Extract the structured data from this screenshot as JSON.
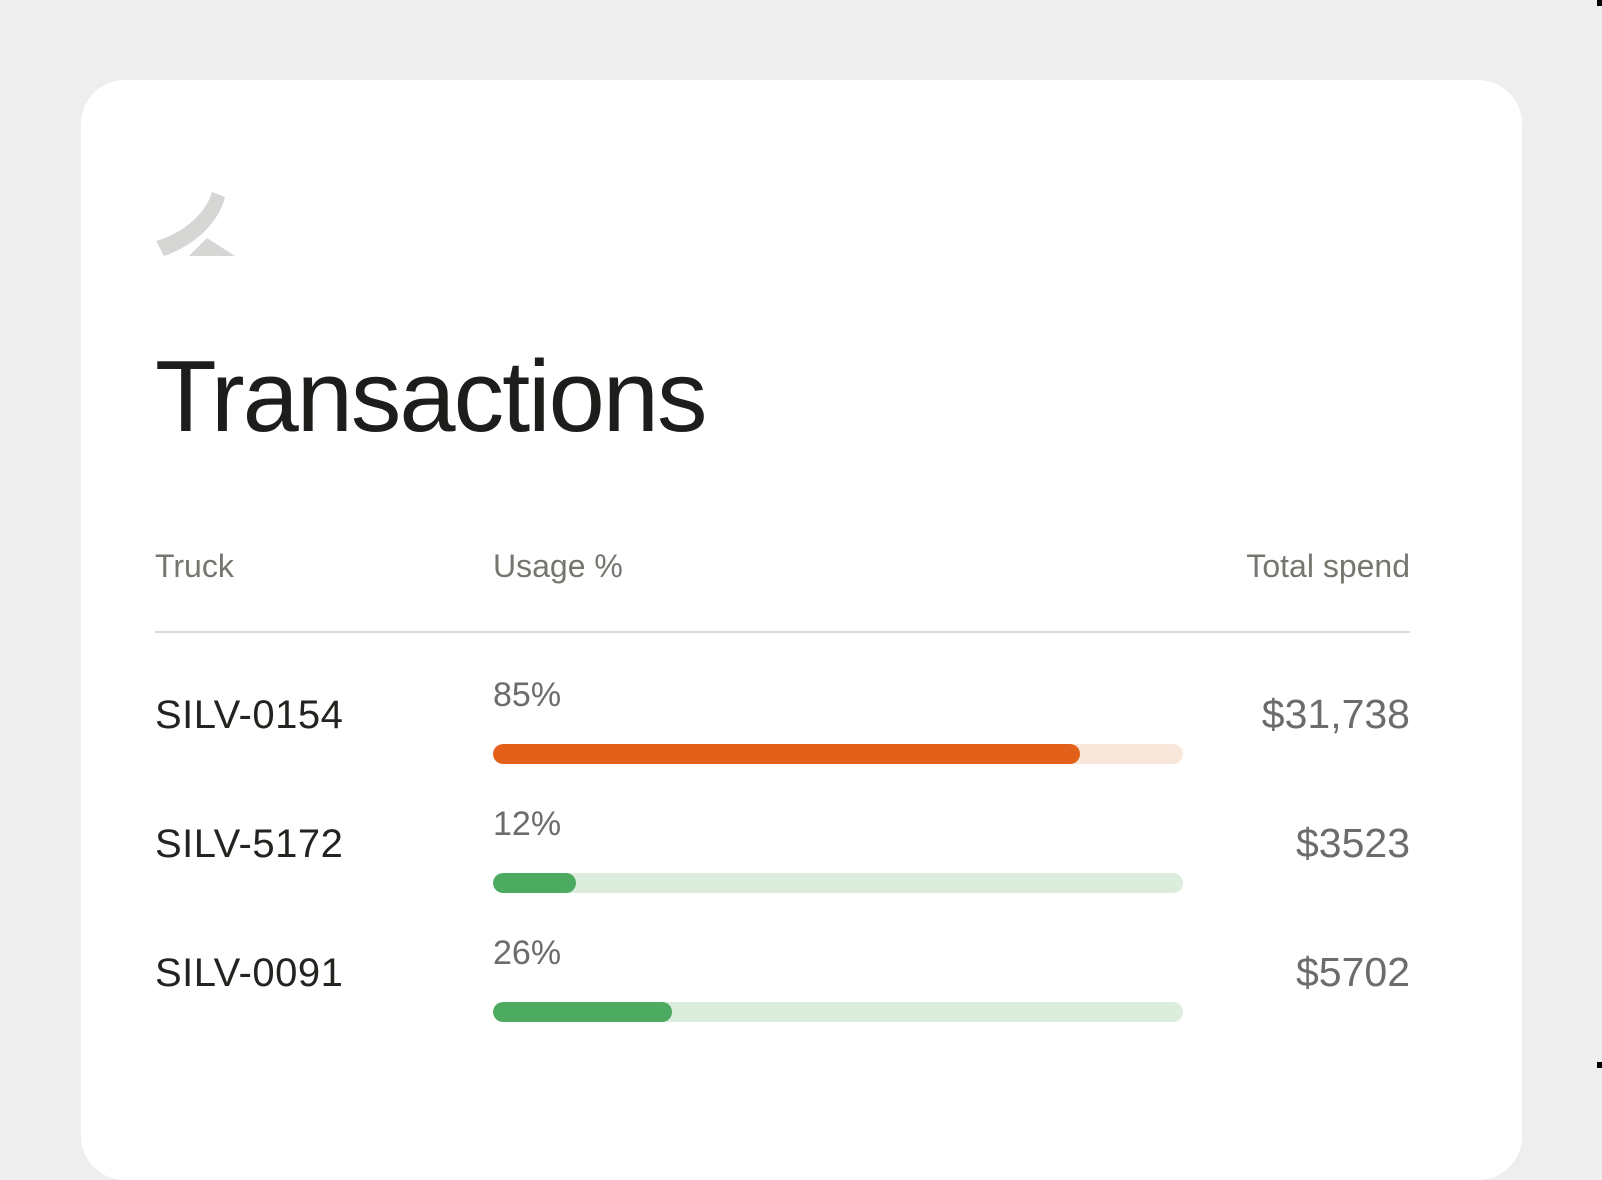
{
  "app": {
    "title": "Transactions",
    "logo": "swoosh-logo"
  },
  "colors": {
    "page_bg": "#eeeeee",
    "card_bg": "#ffffff",
    "heading": "#1d1d1b",
    "header_text": "#76756f",
    "truck_text": "#232320",
    "muted_text": "#6c6c6a",
    "divider": "#dadad8",
    "logo_gray": "#d6d6d4",
    "orange": "#e2601a",
    "orange_track": "#f8e7da",
    "green": "#4cab61",
    "green_track": "#dcecdd"
  },
  "table": {
    "columns": [
      {
        "key": "truck",
        "label": "Truck"
      },
      {
        "key": "usage",
        "label": "Usage %"
      },
      {
        "key": "spend",
        "label": "Total spend"
      }
    ],
    "rows": [
      {
        "truck": "SILV-0154",
        "usage_pct": 85,
        "usage_label": "85%",
        "spend": "$31,738",
        "fill_color": "#e2601a",
        "track_color": "#f8e7da"
      },
      {
        "truck": "SILV-5172",
        "usage_pct": 12,
        "usage_label": "12%",
        "spend": "$3523",
        "fill_color": "#4cab61",
        "track_color": "#dcecdd"
      },
      {
        "truck": "SILV-0091",
        "usage_pct": 26,
        "usage_label": "26%",
        "spend": "$5702",
        "fill_color": "#4cab61",
        "track_color": "#dcecdd"
      }
    ]
  }
}
